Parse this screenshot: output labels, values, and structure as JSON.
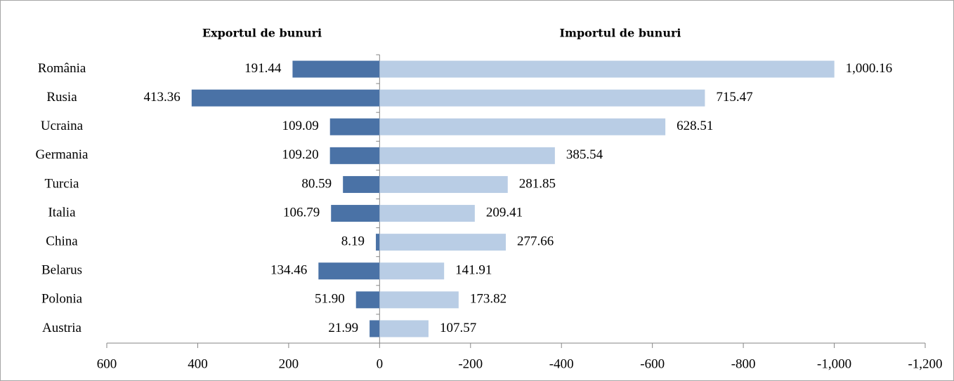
{
  "chart_data": {
    "type": "butterfly-bar",
    "categories": [
      "România",
      "Rusia",
      "Ucraina",
      "Germania",
      "Turcia",
      "Italia",
      "China",
      "Belarus",
      "Polonia",
      "Austria"
    ],
    "series": [
      {
        "name": "Exportul de bunuri",
        "color": "#4a72a6",
        "values": [
          191.44,
          413.36,
          109.09,
          109.2,
          80.59,
          106.79,
          8.19,
          134.46,
          51.9,
          21.99
        ],
        "value_labels": [
          "191.44",
          "413.36",
          "109.09",
          "109.20",
          "80.59",
          "106.79",
          "8.19",
          "134.46",
          "51.90",
          "21.99"
        ]
      },
      {
        "name": "Importul de bunuri",
        "color": "#b9cde5",
        "values": [
          -1000.16,
          -715.47,
          -628.51,
          -385.54,
          -281.85,
          -209.41,
          -277.66,
          -141.91,
          -173.82,
          -107.57
        ],
        "value_labels": [
          "1,000.16",
          "715.47",
          "628.51",
          "385.54",
          "281.85",
          "209.41",
          "277.66",
          "141.91",
          "173.82",
          "107.57"
        ]
      }
    ],
    "xlim": [
      600,
      -1200
    ],
    "xticks": [
      600,
      400,
      200,
      0,
      -200,
      -400,
      -600,
      -800,
      {
        "value": -1000,
        "label": "-1,000"
      },
      {
        "value": -1200,
        "label": "-1,200"
      }
    ]
  }
}
